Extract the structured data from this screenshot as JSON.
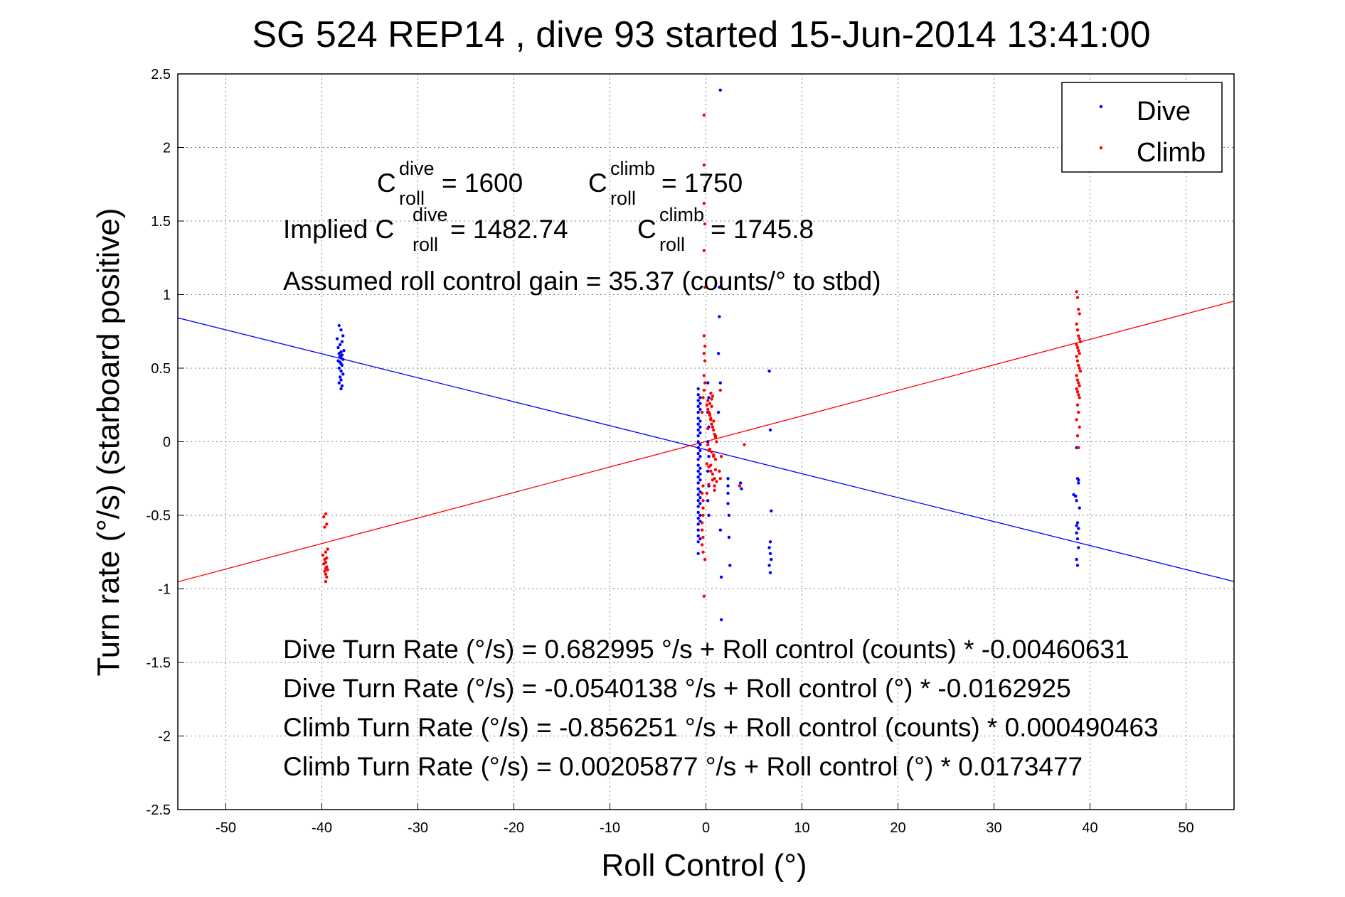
{
  "chart_data": {
    "type": "scatter",
    "title": "SG 524   REP14  , dive 93 started 15-Jun-2014 13:41:00",
    "xlabel": "Roll Control (°)",
    "ylabel": "Turn rate (°/s)  (starboard positive)",
    "xlim": [
      -55,
      55
    ],
    "ylim": [
      -2.5,
      2.5
    ],
    "xticks": [
      "-50",
      "-40",
      "-30",
      "-20",
      "-10",
      "0",
      "10",
      "20",
      "30",
      "40",
      "50"
    ],
    "yticks": [
      "2.5",
      "2",
      "1.5",
      "1",
      "0.5",
      "0",
      "-0.5",
      "-1",
      "-1.5",
      "-2",
      "-2.5"
    ],
    "grid": true,
    "legend_position": "top-right",
    "series": [
      {
        "name": "Dive",
        "color": "#0000ff",
        "marker": "dot",
        "x": [
          -38.2,
          -38.0,
          -37.8,
          -38.4,
          -37.9,
          -38.1,
          -38.3,
          -37.7,
          -38.0,
          -38.2,
          -37.9,
          -38.1,
          -38.0,
          -37.8,
          -38.3,
          -38.1,
          -38.0,
          -37.9,
          -38.2,
          -38.0,
          -37.8,
          -38.1,
          -38.0,
          -38.2,
          -37.9,
          -38.0,
          -0.8,
          -0.8,
          -0.8,
          -0.8,
          -0.8,
          -0.8,
          -0.8,
          -0.8,
          -0.8,
          -0.8,
          -0.8,
          -0.8,
          -0.8,
          -0.8,
          -0.8,
          -0.8,
          -0.8,
          -0.8,
          -0.8,
          -0.8,
          -0.8,
          -0.8,
          -0.8,
          -0.8,
          -0.8,
          -0.8,
          -0.8,
          -0.8,
          -0.6,
          -0.6,
          -0.6,
          -0.6,
          -0.6,
          -0.6,
          -0.6,
          -0.6,
          -0.6,
          -0.6,
          -0.6,
          -0.6,
          -0.6,
          -0.6,
          -0.6,
          -0.6,
          -0.6,
          -0.6,
          0.2,
          0.3,
          0.2,
          0.3,
          0.2,
          0.3,
          0.2,
          0.3,
          0.2,
          0.3,
          1.5,
          1.4,
          1.4,
          1.3,
          1.5,
          1.3,
          1.4,
          1.5,
          1.6,
          1.6,
          2.3,
          2.3,
          2.3,
          2.3,
          2.4,
          2.4,
          2.5,
          3.6,
          3.7,
          6.6,
          6.7,
          6.8,
          6.7,
          6.6,
          6.7,
          6.8,
          6.6,
          6.7,
          38.6,
          38.7,
          38.8,
          38.5,
          38.6,
          38.9,
          38.7,
          38.8,
          38.6,
          38.7,
          38.8,
          38.6,
          38.7,
          38.3,
          38.6,
          38.8
        ],
        "y": [
          0.79,
          0.76,
          0.72,
          0.7,
          0.68,
          0.66,
          0.64,
          0.62,
          0.61,
          0.6,
          0.59,
          0.58,
          0.57,
          0.56,
          0.55,
          0.54,
          0.53,
          0.52,
          0.5,
          0.48,
          0.46,
          0.44,
          0.42,
          0.4,
          0.38,
          0.36,
          0.36,
          0.32,
          0.28,
          0.24,
          0.2,
          0.16,
          0.12,
          0.08,
          0.04,
          0.0,
          -0.04,
          -0.08,
          -0.12,
          -0.16,
          -0.2,
          -0.24,
          -0.28,
          -0.32,
          -0.36,
          -0.4,
          -0.44,
          -0.48,
          -0.52,
          -0.56,
          -0.6,
          -0.64,
          -0.68,
          -0.76,
          0.3,
          0.22,
          0.14,
          0.06,
          -0.02,
          -0.1,
          -0.18,
          -0.26,
          -0.34,
          -0.42,
          -0.5,
          0.26,
          0.1,
          -0.06,
          -0.22,
          -0.38,
          -0.54,
          -0.66,
          0.4,
          0.3,
          0.2,
          0.1,
          0.0,
          -0.1,
          -0.2,
          -0.3,
          -0.4,
          -0.5,
          2.39,
          1.05,
          0.85,
          0.6,
          0.4,
          0.2,
          -0.2,
          -0.6,
          -0.92,
          -1.21,
          -0.25,
          -0.3,
          -0.35,
          -0.42,
          -0.5,
          -0.65,
          -0.84,
          -0.28,
          -0.32,
          0.48,
          0.08,
          -0.47,
          -0.68,
          -0.72,
          -0.76,
          -0.8,
          -0.84,
          -0.89,
          -0.04,
          -0.25,
          -0.26,
          -0.37,
          -0.4,
          -0.45,
          -0.55,
          -0.59,
          -0.62,
          -0.66,
          -0.72,
          -0.8,
          -0.84,
          -0.36,
          -0.57,
          -0.28
        ]
      },
      {
        "name": "Climb",
        "color": "#ff0000",
        "marker": "dot",
        "x": [
          -39.6,
          -39.8,
          -39.5,
          -39.7,
          -39.4,
          -39.6,
          -39.9,
          -39.5,
          -39.7,
          -39.6,
          -39.8,
          -39.5,
          -39.6,
          -39.4,
          -39.7,
          -39.6,
          -39.5,
          -39.6,
          -0.2,
          -0.2,
          -0.1,
          -0.2,
          -0.1,
          -0.2,
          -0.1,
          -0.2,
          -0.1,
          -0.2,
          -0.1,
          -0.2,
          -0.1,
          -0.2,
          -0.1,
          -0.2,
          0.1,
          0.2,
          0.3,
          0.4,
          0.5,
          0.6,
          0.7,
          0.8,
          0.9,
          1.0,
          1.1,
          0.2,
          0.4,
          0.6,
          0.8,
          1.0,
          0.1,
          0.3,
          0.5,
          0.7,
          0.9,
          1.1,
          0.2,
          0.4,
          0.6,
          0.8,
          1.0,
          0.3,
          0.5,
          0.7,
          0.9,
          0.2,
          0.4,
          0.6,
          0.8,
          1.0,
          0.3,
          0.5,
          0.7,
          0.9,
          0.1,
          0.5,
          -0.3,
          -0.3,
          -0.3,
          -0.4,
          -0.4,
          -0.3,
          -0.4,
          -0.3,
          -0.3,
          -0.4,
          -0.3,
          -0.4,
          1.5,
          1.6,
          1.4,
          1.5,
          3.5,
          4.0,
          38.6,
          38.7,
          38.8,
          38.9,
          38.6,
          38.7,
          38.8,
          38.9,
          39.0,
          38.6,
          38.7,
          38.8,
          38.9,
          38.6,
          38.7,
          38.8,
          38.9,
          39.0,
          38.6,
          38.7,
          38.8,
          38.9,
          38.6,
          38.7,
          38.8,
          38.9,
          38.7,
          38.8,
          38.6,
          38.9,
          38.7,
          38.8
        ],
        "y": [
          -0.49,
          -0.51,
          -0.56,
          -0.58,
          -0.73,
          -0.75,
          -0.77,
          -0.79,
          -0.8,
          -0.82,
          -0.83,
          -0.85,
          -0.86,
          -0.87,
          -0.88,
          -0.9,
          -0.92,
          -0.95,
          2.22,
          1.88,
          1.73,
          1.62,
          1.48,
          1.3,
          1.05,
          0.72,
          0.65,
          0.6,
          0.55,
          0.45,
          0.4,
          0.35,
          -0.8,
          -1.05,
          0.25,
          0.22,
          0.2,
          0.18,
          0.15,
          0.12,
          0.1,
          0.08,
          0.05,
          0.03,
          0.0,
          -0.02,
          -0.05,
          -0.07,
          -0.1,
          -0.12,
          -0.15,
          -0.17,
          -0.2,
          -0.22,
          -0.25,
          -0.27,
          0.28,
          0.26,
          0.24,
          0.14,
          0.04,
          -0.06,
          -0.16,
          -0.26,
          -0.3,
          0.09,
          0.19,
          0.29,
          -0.09,
          -0.19,
          -0.29,
          0.33,
          0.31,
          -0.33,
          -0.35,
          0.16,
          -0.4,
          -0.45,
          -0.5,
          -0.55,
          -0.6,
          -0.65,
          -0.7,
          -0.75,
          -0.3,
          -0.35,
          0.3,
          0.2,
          0.35,
          -0.1,
          -0.2,
          -0.25,
          -0.3,
          -0.02,
          1.02,
          0.98,
          0.9,
          0.87,
          0.8,
          0.76,
          0.72,
          0.7,
          0.68,
          0.66,
          0.64,
          0.62,
          0.6,
          0.58,
          0.55,
          0.52,
          0.5,
          0.48,
          0.45,
          0.42,
          0.4,
          0.38,
          0.36,
          0.34,
          0.32,
          0.3,
          0.25,
          0.2,
          0.15,
          0.1,
          0.04,
          -0.04
        ]
      }
    ],
    "fit_lines": [
      {
        "name": "Dive fit",
        "color": "#0000ff",
        "intercept": -0.0540138,
        "slope": -0.0162925
      },
      {
        "name": "Climb fit",
        "color": "#ff0000",
        "intercept": 0.00205877,
        "slope": 0.0173477
      }
    ],
    "annotations": {
      "cdive_label": "C",
      "cdive_sup": "dive",
      "cdive_sub": "roll",
      "cdive_value": " = 1600",
      "cclimb_label": "C",
      "cclimb_sup": "climb",
      "cclimb_sub": "roll",
      "cclimb_value": " = 1750",
      "implied_prefix": "Implied C",
      "implied_dive_sup": "dive",
      "implied_dive_sub": "roll",
      "implied_dive_value": " = 1482.74",
      "implied_climb_label": "C",
      "implied_climb_sup": "climb",
      "implied_climb_sub": "roll",
      "implied_climb_value": " = 1745.8",
      "gain": "Assumed roll control gain = 35.37 (counts/° to stbd)",
      "eq1": "Dive Turn Rate (°/s) = 0.682995 °/s + Roll control (counts) * -0.00460631",
      "eq2": "Dive Turn Rate (°/s) = -0.0540138 °/s + Roll control (°) * -0.0162925",
      "eq3": "Climb Turn Rate (°/s) = -0.856251 °/s + Roll control (counts) * 0.000490463",
      "eq4": "Climb Turn Rate (°/s) = 0.00205877 °/s + Roll control (°) * 0.0173477"
    }
  }
}
